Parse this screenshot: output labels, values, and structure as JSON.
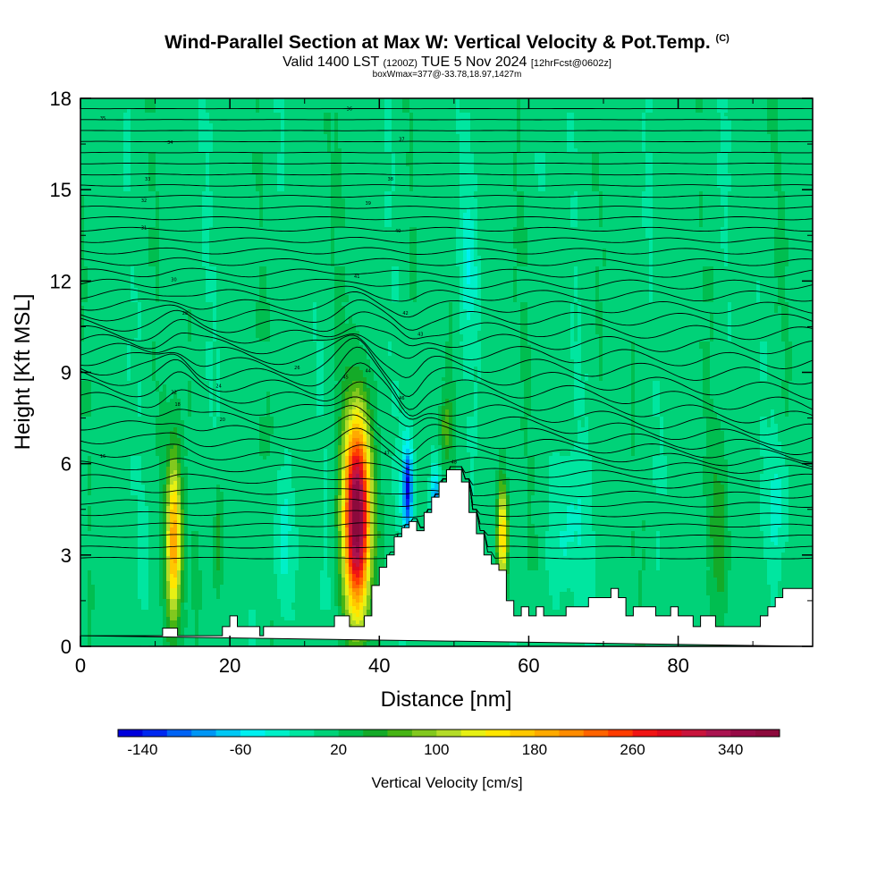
{
  "header": {
    "title": "Wind-Parallel Section at Max W: Vertical Velocity & Pot.Temp.",
    "copyright": "(C)",
    "valid_prefix": "Valid 1400 LST",
    "valid_utc": "(1200Z)",
    "valid_date": "TUE 5 Nov 2024",
    "forecast": "[12hrFcst@0602z]",
    "boxmax": "boxWmax=377@-33.78,18.97,1427m"
  },
  "chart_data": {
    "type": "heatmap",
    "title": "Wind-Parallel Section at Max W: Vertical Velocity & Pot.Temp.",
    "xlabel": "Distance [nm]",
    "ylabel": "Height [Kft MSL]",
    "xlim": [
      0,
      98
    ],
    "ylim": [
      0,
      18
    ],
    "x_ticks": [
      0,
      20,
      40,
      60,
      80
    ],
    "y_ticks": [
      0,
      3,
      6,
      9,
      12,
      15,
      18
    ],
    "colorbar": {
      "label": "Vertical Velocity [cm/s]",
      "min": -160,
      "max": 380,
      "step": 20,
      "tick_values": [
        -140,
        -60,
        20,
        100,
        180,
        260,
        340
      ],
      "tick_labels": [
        "-140",
        "-60",
        "20",
        "100",
        "180",
        "260",
        "340"
      ],
      "colors": [
        "#0000dc",
        "#0028f0",
        "#0064f5",
        "#0096f5",
        "#00c8f5",
        "#00f0f0",
        "#00f0c8",
        "#00e6a0",
        "#00d278",
        "#00be50",
        "#14aa28",
        "#46b414",
        "#82c81e",
        "#b4dc28",
        "#e6f014",
        "#ffe600",
        "#ffc800",
        "#ffaa00",
        "#ff8c00",
        "#ff6400",
        "#ff3c00",
        "#f01414",
        "#dc0a1e",
        "#c8143c",
        "#aa1450",
        "#960a46",
        "#8c0a3c"
      ]
    },
    "background_w": 10,
    "updrafts": [
      {
        "x": 12.5,
        "z_center": 3.5,
        "half_width_nm": 1.3,
        "half_height_kft": 3.4,
        "w_max": 190
      },
      {
        "x": 37.0,
        "z_center": 4.3,
        "half_width_nm": 2.2,
        "half_height_kft": 4.0,
        "w_max": 377
      },
      {
        "x": 56.5,
        "z_center": 3.6,
        "half_width_nm": 0.9,
        "half_height_kft": 2.3,
        "w_max": 160
      },
      {
        "x": 18.5,
        "z_center": 3.3,
        "half_width_nm": 0.8,
        "half_height_kft": 2.3,
        "w_max": 55
      },
      {
        "x": 85.5,
        "z_center": 3.8,
        "half_width_nm": 1.6,
        "half_height_kft": 3.0,
        "w_max": 40
      },
      {
        "x": 49.0,
        "z_center": 7.2,
        "half_width_nm": 1.0,
        "half_height_kft": 1.2,
        "w_max": 60
      }
    ],
    "downdrafts": [
      {
        "x": 43.8,
        "z_center": 5.2,
        "half_width_nm": 0.9,
        "half_height_kft": 1.9,
        "w_min": -150
      },
      {
        "x": 47.5,
        "z_center": 4.6,
        "half_width_nm": 0.8,
        "half_height_kft": 1.6,
        "w_min": -110
      },
      {
        "x": 27.0,
        "z_center": 3.4,
        "half_width_nm": 1.8,
        "half_height_kft": 3.0,
        "w_min": -40
      },
      {
        "x": 65.0,
        "z_center": 3.8,
        "half_width_nm": 3.0,
        "half_height_kft": 3.0,
        "w_min": -35
      },
      {
        "x": 93.5,
        "z_center": 4.8,
        "half_width_nm": 2.0,
        "half_height_kft": 2.5,
        "w_min": -40
      },
      {
        "x": 52.0,
        "z_center": 12.5,
        "half_width_nm": 1.5,
        "half_height_kft": 3.0,
        "w_min": -40
      }
    ],
    "terrain": [
      [
        0,
        0.35
      ],
      [
        11,
        0.35
      ],
      [
        11,
        0.6
      ],
      [
        13,
        0.6
      ],
      [
        13,
        0.35
      ],
      [
        19,
        0.35
      ],
      [
        19,
        0.65
      ],
      [
        20,
        0.65
      ],
      [
        20,
        1.0
      ],
      [
        21,
        1.0
      ],
      [
        21,
        0.65
      ],
      [
        24,
        0.65
      ],
      [
        24,
        0.35
      ],
      [
        24.5,
        0.35
      ],
      [
        24.5,
        0.65
      ],
      [
        34,
        0.65
      ],
      [
        34,
        1.0
      ],
      [
        36,
        1.0
      ],
      [
        36,
        0.65
      ],
      [
        38,
        0.65
      ],
      [
        38,
        1.0
      ],
      [
        39,
        1.0
      ],
      [
        39,
        2.0
      ],
      [
        40,
        2.0
      ],
      [
        40,
        2.6
      ],
      [
        41,
        2.6
      ],
      [
        41,
        3.0
      ],
      [
        42,
        3.0
      ],
      [
        42,
        3.6
      ],
      [
        43,
        3.6
      ],
      [
        43,
        3.9
      ],
      [
        44,
        3.9
      ],
      [
        44,
        4.1
      ],
      [
        45,
        4.1
      ],
      [
        45,
        3.8
      ],
      [
        46,
        3.8
      ],
      [
        46,
        4.4
      ],
      [
        47,
        4.4
      ],
      [
        47,
        4.9
      ],
      [
        48,
        4.9
      ],
      [
        48,
        5.4
      ],
      [
        49,
        5.4
      ],
      [
        49,
        5.8
      ],
      [
        51,
        5.8
      ],
      [
        51,
        5.4
      ],
      [
        52,
        5.4
      ],
      [
        52,
        4.4
      ],
      [
        53,
        4.4
      ],
      [
        53,
        3.7
      ],
      [
        54,
        3.7
      ],
      [
        54,
        3.0
      ],
      [
        55,
        3.0
      ],
      [
        55,
        2.7
      ],
      [
        56,
        2.7
      ],
      [
        56,
        2.5
      ],
      [
        57,
        2.5
      ],
      [
        57,
        1.5
      ],
      [
        58,
        1.5
      ],
      [
        58,
        1.0
      ],
      [
        59,
        1.0
      ],
      [
        59,
        1.3
      ],
      [
        60,
        1.3
      ],
      [
        60,
        1.0
      ],
      [
        61,
        1.0
      ],
      [
        61,
        1.3
      ],
      [
        62,
        1.3
      ],
      [
        62,
        1.0
      ],
      [
        65,
        1.0
      ],
      [
        65,
        1.3
      ],
      [
        68,
        1.3
      ],
      [
        68,
        1.6
      ],
      [
        71,
        1.6
      ],
      [
        71,
        1.9
      ],
      [
        72,
        1.9
      ],
      [
        72,
        1.6
      ],
      [
        73,
        1.6
      ],
      [
        73,
        1.0
      ],
      [
        74,
        1.0
      ],
      [
        74,
        1.3
      ],
      [
        77,
        1.3
      ],
      [
        77,
        1.0
      ],
      [
        79,
        1.0
      ],
      [
        79,
        1.3
      ],
      [
        80,
        1.3
      ],
      [
        80,
        1.0
      ],
      [
        81,
        1.0
      ],
      [
        81,
        1.0
      ],
      [
        82,
        1.0
      ],
      [
        82,
        0.65
      ],
      [
        83,
        0.65
      ],
      [
        83,
        1.0
      ],
      [
        85,
        1.0
      ],
      [
        85,
        0.65
      ],
      [
        91,
        0.65
      ],
      [
        91,
        1.0
      ],
      [
        92,
        1.0
      ],
      [
        92,
        1.3
      ],
      [
        93,
        1.3
      ],
      [
        93,
        1.6
      ],
      [
        94,
        1.6
      ],
      [
        94,
        1.9
      ],
      [
        98,
        1.9
      ],
      [
        98,
        0
      ]
    ],
    "isentropes": {
      "count": 42,
      "base_height_kft": 2.9,
      "spacing_kft": 0.36,
      "labels": [
        "16",
        "18",
        "20",
        "22",
        "24",
        "26",
        "28",
        "30",
        "31",
        "32",
        "33",
        "34",
        "35",
        "36",
        "37",
        "38",
        "39",
        "40",
        "41",
        "42",
        "43",
        "44",
        "45",
        "46",
        "47",
        "48"
      ]
    }
  }
}
